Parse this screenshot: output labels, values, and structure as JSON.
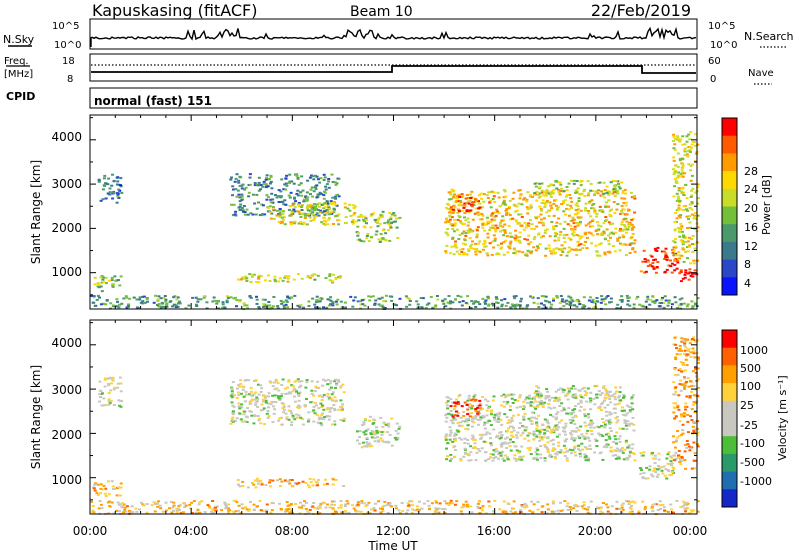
{
  "header": {
    "station": "Kapuskasing (fitACF)",
    "beam": "Beam 10",
    "date": "22/Feb/2019"
  },
  "top_panels": {
    "nsky_label": "N.Sky",
    "nsky_ticks": [
      "10^5",
      "10^0"
    ],
    "nsearch_label": "N.Search",
    "nsearch_ticks": [
      "10^5",
      "10^0"
    ],
    "freq_label_1": "Freq.",
    "freq_label_2": "[MHz]",
    "freq_ticks": [
      "18",
      "8"
    ],
    "nave_label": "Nave",
    "nave_ticks": [
      "60",
      "0"
    ],
    "cpid_label": "CPID",
    "cpid_value": "normal (fast) 151"
  },
  "chart_data": [
    {
      "type": "heatmap",
      "title": "",
      "xlabel": "Time UT",
      "ylabel": "Slant Range [km]",
      "x_ticks": [
        "00:00",
        "04:00",
        "08:00",
        "12:00",
        "16:00",
        "20:00",
        "00:00"
      ],
      "x_range_hours": [
        0,
        24
      ],
      "y_ticks": [
        "1000",
        "2000",
        "3000",
        "4000"
      ],
      "ylim": [
        180,
        4560
      ],
      "colorbar": {
        "label": "Power [dB]",
        "ticks": [
          "4",
          "8",
          "12",
          "16",
          "20",
          "24",
          "28"
        ],
        "range": [
          0,
          30
        ],
        "colors": [
          "#0a14ff",
          "#2a47c8",
          "#3a7a8c",
          "#4a9a6c",
          "#74bf3a",
          "#c8dc28",
          "#ffd800",
          "#ff9a00",
          "#ff5a00",
          "#ff0000"
        ]
      },
      "regions": [
        {
          "t": [
            0.3,
            1.2
          ],
          "r": [
            2600,
            3300
          ],
          "level": 0.25
        },
        {
          "t": [
            0.0,
            1.2
          ],
          "r": [
            600,
            950
          ],
          "level": 0.45
        },
        {
          "t": [
            0.0,
            24.0
          ],
          "r": [
            200,
            500
          ],
          "level": 0.35
        },
        {
          "t": [
            5.5,
            9.8
          ],
          "r": [
            2300,
            3250
          ],
          "level": 0.3
        },
        {
          "t": [
            7.0,
            10.5
          ],
          "r": [
            2100,
            2600
          ],
          "level": 0.6
        },
        {
          "t": [
            10.5,
            12.2
          ],
          "r": [
            1700,
            2400
          ],
          "level": 0.5
        },
        {
          "t": [
            5.8,
            10.0
          ],
          "r": [
            800,
            1000
          ],
          "level": 0.55
        },
        {
          "t": [
            14.0,
            21.5
          ],
          "r": [
            1400,
            2900
          ],
          "level": 0.65
        },
        {
          "t": [
            14.2,
            15.4
          ],
          "r": [
            2400,
            2800
          ],
          "level": 0.85
        },
        {
          "t": [
            17.5,
            21.0
          ],
          "r": [
            2800,
            3100
          ],
          "level": 0.5
        },
        {
          "t": [
            21.7,
            23.2
          ],
          "r": [
            1000,
            1600
          ],
          "level": 0.95
        },
        {
          "t": [
            23.2,
            24.0
          ],
          "r": [
            800,
            1100
          ],
          "level": 1.0
        },
        {
          "t": [
            23.0,
            24.0
          ],
          "r": [
            1200,
            4200
          ],
          "level": 0.6
        }
      ]
    },
    {
      "type": "heatmap",
      "title": "",
      "xlabel": "Time UT",
      "ylabel": "Slant Range [km]",
      "x_ticks": [
        "00:00",
        "04:00",
        "08:00",
        "12:00",
        "16:00",
        "20:00",
        "00:00"
      ],
      "x_range_hours": [
        0,
        24
      ],
      "y_ticks": [
        "1000",
        "2000",
        "3000",
        "4000"
      ],
      "ylim": [
        180,
        4560
      ],
      "colorbar": {
        "label": "Velocity [m s⁻¹]",
        "ticks": [
          "1000",
          "500",
          "100",
          "25",
          "-25",
          "-100",
          "-500",
          "-1000"
        ],
        "range": [
          -1000,
          1000
        ],
        "colors": [
          "#1428c8",
          "#1f6fb0",
          "#2a9a6a",
          "#4cbf3a",
          "#c8c8c0",
          "#c8c8c0",
          "#ffd23a",
          "#ffa000",
          "#ff6000",
          "#ff0000"
        ]
      },
      "regions": [
        {
          "t": [
            0.3,
            1.2
          ],
          "r": [
            2600,
            3300
          ],
          "level": 0.5
        },
        {
          "t": [
            0.0,
            1.2
          ],
          "r": [
            600,
            950
          ],
          "level": 0.72
        },
        {
          "t": [
            0.0,
            24.0
          ],
          "r": [
            200,
            500
          ],
          "level": 0.65
        },
        {
          "t": [
            5.5,
            10.0
          ],
          "r": [
            2200,
            3250
          ],
          "level": 0.5
        },
        {
          "t": [
            10.5,
            12.2
          ],
          "r": [
            1700,
            2400
          ],
          "level": 0.5
        },
        {
          "t": [
            5.8,
            10.0
          ],
          "r": [
            800,
            1000
          ],
          "level": 0.7
        },
        {
          "t": [
            14.0,
            21.5
          ],
          "r": [
            1400,
            2900
          ],
          "level": 0.5
        },
        {
          "t": [
            14.2,
            15.4
          ],
          "r": [
            2400,
            2800
          ],
          "level": 0.85
        },
        {
          "t": [
            17.5,
            21.0
          ],
          "r": [
            2800,
            3100
          ],
          "level": 0.5
        },
        {
          "t": [
            21.7,
            23.2
          ],
          "r": [
            1000,
            1600
          ],
          "level": 0.5
        },
        {
          "t": [
            23.0,
            24.0
          ],
          "r": [
            1200,
            4200
          ],
          "level": 0.72
        }
      ]
    }
  ]
}
